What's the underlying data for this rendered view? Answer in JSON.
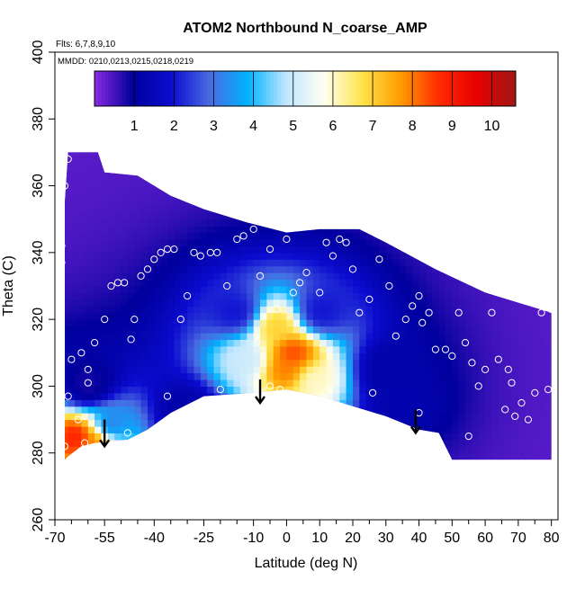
{
  "chart_data": {
    "type": "heatmap",
    "title": "ATOM2 Northbound N_coarse_AMP",
    "subtitle_lines": [
      "Flts: 6,7,8,9,10",
      "MMDD: 0210,0213,0215,0218,0219"
    ],
    "xlabel": "Latitude (deg N)",
    "ylabel": "Theta (C)",
    "xlim": [
      -70,
      82
    ],
    "ylim": [
      260,
      400
    ],
    "x_ticks": [
      -70,
      -55,
      -40,
      -25,
      -10,
      0,
      10,
      20,
      30,
      40,
      50,
      60,
      70,
      80
    ],
    "x_minor_ticks": [
      -65,
      -60,
      -50,
      -45,
      -35,
      -30,
      -20,
      -15,
      -5,
      5,
      15,
      25,
      35,
      45,
      55,
      65,
      75
    ],
    "y_ticks": [
      260,
      280,
      300,
      320,
      340,
      360,
      380,
      400
    ],
    "colorbar": {
      "min": 0,
      "max": 10.6,
      "ticks": [
        1,
        2,
        3,
        4,
        5,
        6,
        7,
        8,
        9,
        10
      ],
      "colors": [
        "#8a2be2",
        "#00009c",
        "#0b0bd0",
        "#4a6ae0",
        "#00b2ff",
        "#bfe6ff",
        "#fffff0",
        "#ffe34a",
        "#ff9a00",
        "#ff2b00",
        "#e60000",
        "#a01818"
      ]
    },
    "boundary": {
      "top": [
        [
          -67,
          355
        ],
        [
          -66,
          370
        ],
        [
          -57,
          370
        ],
        [
          -55,
          364
        ],
        [
          -45,
          363
        ],
        [
          -35,
          357
        ],
        [
          -25,
          353
        ],
        [
          -12,
          349
        ],
        [
          0,
          346
        ],
        [
          10,
          347
        ],
        [
          22,
          347
        ],
        [
          30,
          343
        ],
        [
          45,
          335
        ],
        [
          60,
          328
        ],
        [
          70,
          325
        ],
        [
          80,
          322
        ]
      ],
      "bottom": [
        [
          80,
          278
        ],
        [
          50,
          278
        ],
        [
          46,
          286
        ],
        [
          40,
          287
        ],
        [
          30,
          291
        ],
        [
          20,
          294
        ],
        [
          10,
          297
        ],
        [
          0,
          299
        ],
        [
          -10,
          298
        ],
        [
          -25,
          297
        ],
        [
          -35,
          292
        ],
        [
          -42,
          287
        ],
        [
          -48,
          284
        ],
        [
          -58,
          283
        ],
        [
          -62,
          282
        ],
        [
          -66,
          279
        ],
        [
          -67,
          278
        ]
      ]
    },
    "field": [
      {
        "lat": -63,
        "theta": 285,
        "value": 9
      },
      {
        "lat": -58,
        "theta": 284,
        "value": 8
      },
      {
        "lat": -54,
        "theta": 288,
        "value": 3
      },
      {
        "lat": 2,
        "theta": 310,
        "value": 8.5
      },
      {
        "lat": 0,
        "theta": 305,
        "value": 8
      },
      {
        "lat": -3,
        "theta": 318,
        "value": 7
      },
      {
        "lat": -12,
        "theta": 308,
        "value": 5
      },
      {
        "lat": 8,
        "theta": 302,
        "value": 6
      },
      {
        "lat": -15,
        "theta": 322,
        "value": 2
      },
      {
        "lat": 10,
        "theta": 322,
        "value": 2
      },
      {
        "lat": -30,
        "theta": 292,
        "value": 1.2
      },
      {
        "lat": 35,
        "theta": 295,
        "value": 1.3
      },
      {
        "lat": 30,
        "theta": 305,
        "value": 1.2
      },
      {
        "lat": -60,
        "theta": 300,
        "value": 0.8
      }
    ],
    "points": [
      [
        -66,
        368
      ],
      [
        -67,
        360
      ],
      [
        -68,
        342
      ],
      [
        -68,
        337
      ],
      [
        -65,
        308
      ],
      [
        -62,
        310
      ],
      [
        -60,
        305
      ],
      [
        -66,
        297
      ],
      [
        -63,
        290
      ],
      [
        -58,
        313
      ],
      [
        -60,
        301
      ],
      [
        -55,
        320
      ],
      [
        -53,
        330
      ],
      [
        -51,
        331
      ],
      [
        -49,
        331
      ],
      [
        -47,
        314
      ],
      [
        -46,
        320
      ],
      [
        -44,
        333
      ],
      [
        -42,
        335
      ],
      [
        -40,
        338
      ],
      [
        -38,
        340
      ],
      [
        -36,
        341
      ],
      [
        -34,
        341
      ],
      [
        -32,
        320
      ],
      [
        -30,
        327
      ],
      [
        -28,
        340
      ],
      [
        -26,
        339
      ],
      [
        -23,
        340
      ],
      [
        -21,
        340
      ],
      [
        -18,
        330
      ],
      [
        -15,
        344
      ],
      [
        -13,
        345
      ],
      [
        -10,
        347
      ],
      [
        -8,
        333
      ],
      [
        -5,
        341
      ],
      [
        -3,
        323
      ],
      [
        0,
        344
      ],
      [
        2,
        328
      ],
      [
        4,
        331
      ],
      [
        6,
        334
      ],
      [
        10,
        328
      ],
      [
        12,
        343
      ],
      [
        14,
        339
      ],
      [
        16,
        344
      ],
      [
        18,
        343
      ],
      [
        20,
        335
      ],
      [
        22,
        322
      ],
      [
        25,
        326
      ],
      [
        28,
        338
      ],
      [
        31,
        330
      ],
      [
        33,
        315
      ],
      [
        36,
        320
      ],
      [
        38,
        324
      ],
      [
        40,
        327
      ],
      [
        41,
        319
      ],
      [
        43,
        322
      ],
      [
        45,
        311
      ],
      [
        48,
        311
      ],
      [
        50,
        309
      ],
      [
        52,
        322
      ],
      [
        54,
        313
      ],
      [
        56,
        307
      ],
      [
        58,
        300
      ],
      [
        60,
        305
      ],
      [
        62,
        322
      ],
      [
        64,
        308
      ],
      [
        67,
        305
      ],
      [
        68,
        301
      ],
      [
        69,
        291
      ],
      [
        71,
        295
      ],
      [
        73,
        290
      ],
      [
        75,
        298
      ],
      [
        77,
        322
      ],
      [
        79,
        299
      ],
      [
        80,
        323
      ],
      [
        66,
        293
      ],
      [
        55,
        285
      ],
      [
        40,
        292
      ],
      [
        35,
        286
      ],
      [
        26,
        298
      ],
      [
        15,
        294
      ],
      [
        -2,
        299
      ],
      [
        -5,
        300
      ],
      [
        -8,
        298
      ],
      [
        -20,
        299
      ],
      [
        -36,
        297
      ],
      [
        -48,
        286
      ],
      [
        -58,
        281
      ],
      [
        -61,
        283
      ],
      [
        -67,
        282
      ]
    ],
    "arrows": [
      [
        -55,
        290,
        282
      ],
      [
        -8,
        302,
        295
      ],
      [
        39,
        293,
        286
      ]
    ],
    "grid": false,
    "legend_position": "top"
  }
}
